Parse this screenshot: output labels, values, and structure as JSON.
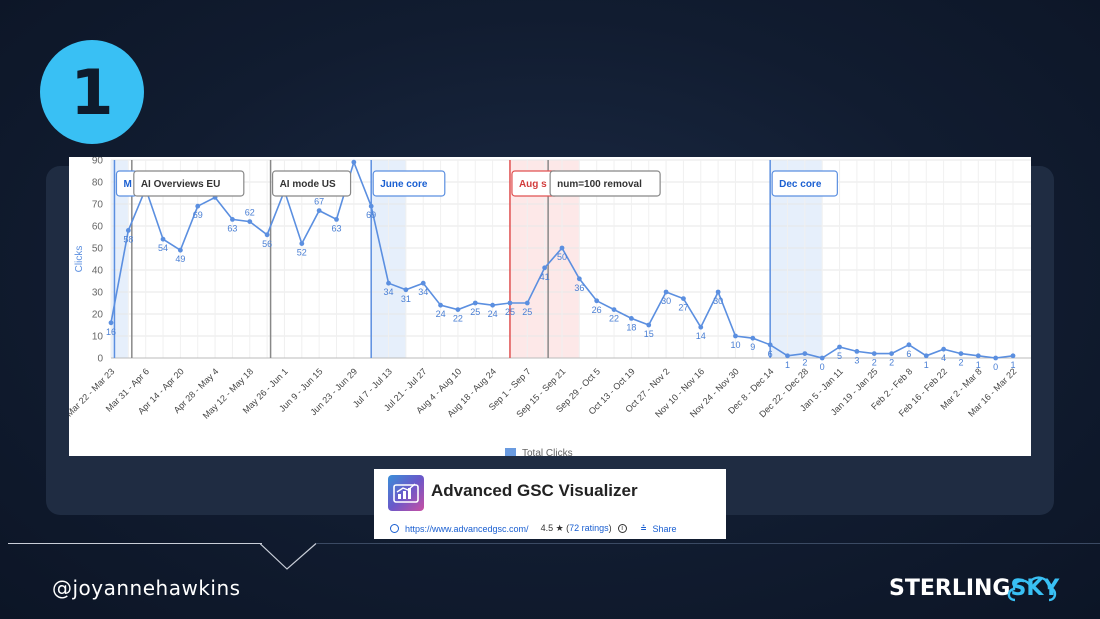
{
  "slide": {
    "number": "1",
    "handle": "@joyannehawkins",
    "brand_part1": "STERLING",
    "brand_part2": "SKY",
    "accent": "#39c0f4"
  },
  "extension": {
    "title": "Advanced GSC Visualizer",
    "url": "https://www.advancedgsc.com/",
    "rating": "4.5 ★ (",
    "ratings_link": "72 ratings",
    "rating_close": ")",
    "share": "Share",
    "icon": "bar-chart-icon"
  },
  "chart_data": {
    "type": "line",
    "ylabel": "Clicks",
    "ylim": [
      0,
      90
    ],
    "yticks": [
      0,
      10,
      20,
      30,
      40,
      50,
      60,
      70,
      80,
      90
    ],
    "series": [
      {
        "name": "Total Clicks",
        "color": "#5b8fe0",
        "values": [
          16,
          58,
          77,
          54,
          49,
          69,
          73,
          63,
          62,
          56,
          76,
          52,
          67,
          63,
          89,
          69,
          34,
          31,
          34,
          24,
          22,
          25,
          24,
          25,
          25,
          41,
          50,
          36,
          26,
          22,
          18,
          15,
          30,
          27,
          14,
          30,
          10,
          9,
          6,
          1,
          2,
          0,
          5,
          3,
          2,
          2,
          6,
          1,
          4,
          2,
          1,
          0,
          1
        ]
      }
    ],
    "point_labels": [
      "16",
      "58",
      "77",
      "54",
      "49",
      "69",
      "73",
      "63",
      "62",
      "56",
      "76",
      "52",
      "67",
      "63",
      "89",
      "69",
      "34",
      "31",
      "34",
      "24",
      "22",
      "25",
      "24",
      "25",
      "25",
      "41",
      "50",
      "36",
      "26",
      "22",
      "18",
      "15",
      "30",
      "27",
      "14",
      "30",
      "10",
      "9",
      "6",
      "1",
      "2",
      "0",
      "5",
      "3",
      "2",
      "2",
      "6",
      "1",
      "4",
      "2",
      "1",
      "0",
      "1"
    ],
    "x_tick_labels": [
      "Mar 22 - Mar 23",
      "Mar 31 - Apr 6",
      "Apr 14 - Apr 20",
      "Apr 28 - May 4",
      "May 12 - May 18",
      "May 26 - Jun 1",
      "Jun 9 - Jun 15",
      "Jun 23 - Jun 29",
      "Jul 7 - Jul 13",
      "Jul 21 - Jul 27",
      "Aug 4 - Aug 10",
      "Aug 18 - Aug 24",
      "Sep 1 - Sep 7",
      "Sep 15 - Sep 21",
      "Sep 29 - Oct 5",
      "Oct 13 - Oct 19",
      "Oct 27 - Nov 2",
      "Nov 10 - Nov 16",
      "Nov 24 - Nov 30",
      "Dec 8 - Dec 14",
      "Dec 22 - Dec 28",
      "Jan 5 - Jan 11",
      "Jan 19 - Jan 25",
      "Feb 2 - Feb 8",
      "Feb 16 - Feb 22",
      "Mar 2 - Mar 8",
      "Mar 16 - Mar 22"
    ],
    "legend": {
      "label": "Total Clicks",
      "placement": "bottom-center"
    },
    "grid": true,
    "bands": [
      {
        "from": 0,
        "to": 1,
        "color": "#e6effb"
      },
      {
        "from": 15,
        "to": 17,
        "color": "#e6effb"
      },
      {
        "from": 23,
        "to": 27,
        "color": "#fde8e8"
      },
      {
        "from": 38,
        "to": 41,
        "color": "#e6effb"
      }
    ],
    "annotations": [
      {
        "at": 0.2,
        "label": "M",
        "color": "#1a5fd1",
        "line": "#5b8fe0"
      },
      {
        "at": 1.2,
        "label": "AI Overviews EU",
        "color": "#333333",
        "line": "#888888"
      },
      {
        "at": 9.2,
        "label": "AI mode US",
        "color": "#333333",
        "line": "#888888"
      },
      {
        "at": 15.0,
        "label": "June core",
        "color": "#1a5fd1",
        "line": "#5b8fe0"
      },
      {
        "at": 23.0,
        "label": "Aug s",
        "color": "#d23c3c",
        "line": "#e05050"
      },
      {
        "at": 25.2,
        "label": "num=100 removal",
        "color": "#333333",
        "line": "#888888"
      },
      {
        "at": 38.0,
        "label": "Dec core",
        "color": "#1a5fd1",
        "line": "#5b8fe0"
      }
    ]
  }
}
